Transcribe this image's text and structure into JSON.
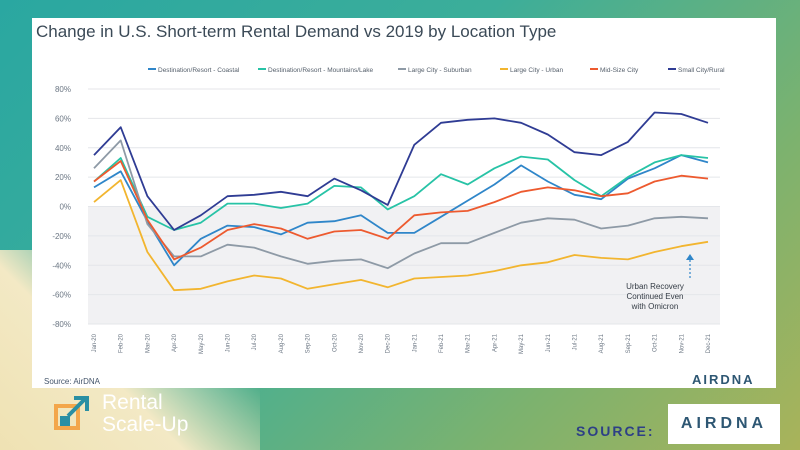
{
  "chart_data": {
    "type": "line",
    "title": "Change in U.S. Short-term Rental Demand vs 2019 by Location Type",
    "categories": [
      "Jan-20",
      "Feb-20",
      "Mar-20",
      "Apr-20",
      "May-20",
      "Jun-20",
      "Jul-20",
      "Aug-20",
      "Sep-20",
      "Oct-20",
      "Nov-20",
      "Dec-20",
      "Jan-21",
      "Feb-21",
      "Mar-21",
      "Apr-21",
      "May-21",
      "Jun-21",
      "Jul-21",
      "Aug-21",
      "Sep-21",
      "Oct-21",
      "Nov-21",
      "Dec-21"
    ],
    "y_ticks": [
      "-80%",
      "-60%",
      "-40%",
      "-20%",
      "0%",
      "20%",
      "40%",
      "60%",
      "80%"
    ],
    "ylim": [
      -80,
      80
    ],
    "series": [
      {
        "name": "Destination/Resort - Coastal",
        "color": "#2f86c9",
        "values": [
          13,
          24,
          -10,
          -40,
          -22,
          -13,
          -14,
          -19,
          -11,
          -10,
          -6,
          -18,
          -18,
          -7,
          4,
          15,
          28,
          17,
          8,
          5,
          19,
          26,
          35,
          30
        ]
      },
      {
        "name": "Destination/Resort - Mountains/Lake",
        "color": "#27c3a6",
        "values": [
          17,
          33,
          -7,
          -16,
          -11,
          2,
          2,
          -1,
          2,
          14,
          13,
          -2,
          7,
          22,
          15,
          26,
          34,
          32,
          18,
          7,
          20,
          30,
          35,
          33
        ]
      },
      {
        "name": "Large City - Suburban",
        "color": "#8e9aa6",
        "values": [
          26,
          45,
          -12,
          -34,
          -34,
          -26,
          -28,
          -34,
          -39,
          -37,
          -36,
          -42,
          -32,
          -25,
          -25,
          -18,
          -11,
          -8,
          -9,
          -15,
          -13,
          -8,
          -7,
          -8
        ]
      },
      {
        "name": "Large City - Urban",
        "color": "#f2b52f",
        "values": [
          3,
          18,
          -31,
          -57,
          -56,
          -51,
          -47,
          -49,
          -56,
          -53,
          -50,
          -55,
          -49,
          -48,
          -47,
          -44,
          -40,
          -38,
          -33,
          -35,
          -36,
          -31,
          -27,
          -24
        ]
      },
      {
        "name": "Mid-Size City",
        "color": "#ed5a2f",
        "values": [
          17,
          31,
          -9,
          -36,
          -28,
          -16,
          -12,
          -15,
          -22,
          -17,
          -16,
          -22,
          -6,
          -4,
          -3,
          3,
          10,
          13,
          11,
          7,
          9,
          17,
          21,
          19
        ]
      },
      {
        "name": "Small City/Rural",
        "color": "#2f3c94",
        "values": [
          35,
          54,
          7,
          -16,
          -6,
          7,
          8,
          10,
          7,
          19,
          11,
          1,
          42,
          57,
          59,
          60,
          57,
          49,
          37,
          35,
          44,
          64,
          63,
          57
        ]
      }
    ],
    "annotation": [
      "Urban Recovery",
      "Continued Even",
      "with Omicron"
    ],
    "source": "Source: AirDNA",
    "brand": "AIRDNA"
  },
  "branding": {
    "logo_line1": "Rental",
    "logo_line2": "Scale-Up",
    "source_label": "SOURCE:",
    "box_brand": "AIRDNA"
  },
  "colors": {
    "shade": "#f1f1f3",
    "grid": "#e4e6ea",
    "axis_text": "#6b7683",
    "logo_orange": "#f3a64a",
    "logo_teal": "#2a8fa3"
  }
}
